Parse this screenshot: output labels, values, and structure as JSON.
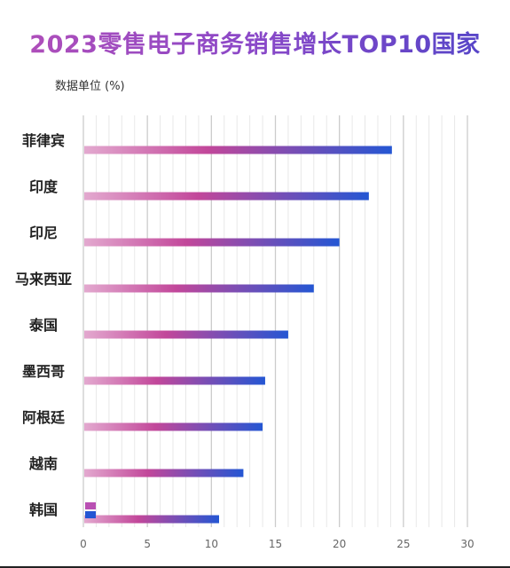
{
  "chart_data": {
    "type": "bar",
    "orientation": "horizontal",
    "title": "2023零售电子商务销售增长TOP10国家",
    "unit_label": "数据单位 (%)",
    "categories": [
      "菲律宾",
      "印度",
      "印尼",
      "马来西亚",
      "泰国",
      "墨西哥",
      "阿根廷",
      "越南",
      "韩国"
    ],
    "values": [
      24.1,
      22.3,
      20.0,
      18.0,
      16.0,
      14.2,
      14.0,
      12.5,
      10.6
    ],
    "xlim": [
      0,
      30
    ],
    "xticks": [
      0,
      5,
      10,
      15,
      20,
      25,
      30
    ],
    "grid": true,
    "legend": "none",
    "colors": {
      "bar_start": "#e3a9cf",
      "bar_mid": "#c2479a",
      "bar_end": "#2456d3",
      "title_start": "#b34fb8",
      "title_end": "#5145c8",
      "major_grid": "#cccccc",
      "minor_grid": "#e8e8e8",
      "small_mark_top": "#b950b3",
      "small_mark_bottom": "#2456d3"
    }
  }
}
